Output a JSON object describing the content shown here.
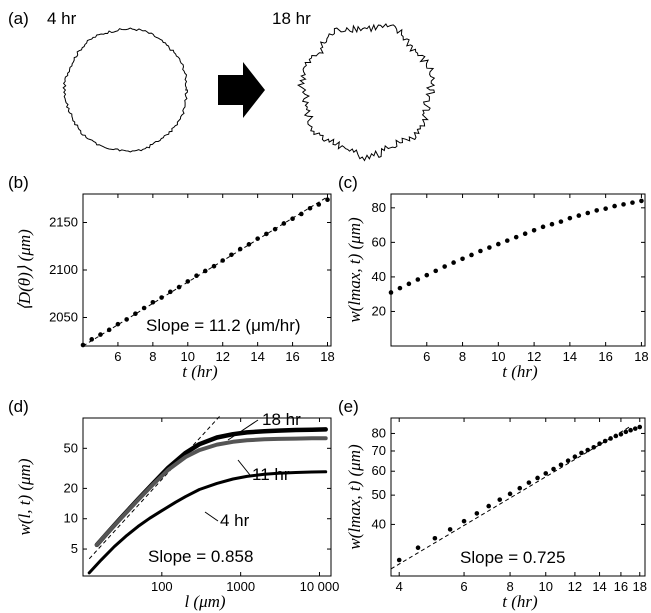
{
  "panel_a": {
    "panel_label": "(a)",
    "left_label": "4 hr",
    "right_label": "18 hr"
  },
  "chart_data": [
    {
      "panel": "(b)",
      "type": "scatter",
      "xlabel": "t (hr)",
      "ylabel": "⟨D(θ)⟩ (μm)",
      "xlim": [
        4,
        18.2
      ],
      "ylim": [
        2020,
        2180
      ],
      "xticks": [
        6,
        8,
        10,
        12,
        14,
        16,
        18
      ],
      "yticks": [
        2050,
        2100,
        2150
      ],
      "annotation": "Slope = 11.2 (μm/hr)",
      "fit_line": {
        "x": [
          4,
          18
        ],
        "y": [
          2020,
          2177
        ]
      },
      "points": {
        "x": [
          4,
          4.5,
          5,
          5.5,
          6,
          6.5,
          7,
          7.5,
          8,
          8.5,
          9,
          9.5,
          10,
          10.5,
          11,
          11.5,
          12,
          12.5,
          13,
          13.5,
          14,
          14.5,
          15,
          15.5,
          16,
          16.5,
          17,
          17.5,
          18
        ],
        "y": [
          2021,
          2027,
          2032,
          2037,
          2043,
          2048,
          2054,
          2060,
          2066,
          2071,
          2077,
          2082,
          2088,
          2094,
          2099,
          2104,
          2110,
          2116,
          2122,
          2127,
          2133,
          2138,
          2143,
          2149,
          2154,
          2159,
          2165,
          2169,
          2174
        ]
      }
    },
    {
      "panel": "(c)",
      "type": "scatter",
      "xlabel": "t (hr)",
      "ylabel": "w(lmax, t) (μm)",
      "xlim": [
        4,
        18.2
      ],
      "ylim": [
        0,
        88
      ],
      "xticks": [
        6,
        8,
        10,
        12,
        14,
        16,
        18
      ],
      "yticks": [
        20,
        40,
        60,
        80
      ],
      "points": {
        "x": [
          4,
          4.5,
          5,
          5.5,
          6,
          6.5,
          7,
          7.5,
          8,
          8.5,
          9,
          9.5,
          10,
          10.5,
          11,
          11.5,
          12,
          12.5,
          13,
          13.5,
          14,
          14.5,
          15,
          15.5,
          16,
          16.5,
          17,
          17.5,
          18
        ],
        "y": [
          31,
          33.5,
          36,
          38.5,
          41,
          43.5,
          46,
          48.3,
          50.5,
          52.7,
          55,
          57,
          59,
          61,
          63,
          65,
          67,
          69,
          70.5,
          72,
          74,
          75.5,
          77,
          78.5,
          79.5,
          81,
          82,
          83,
          84
        ]
      }
    },
    {
      "panel": "(d)",
      "type": "line",
      "xscale": "log",
      "yscale": "log",
      "xlabel": "l (μm)",
      "ylabel": "w(l, t) (μm)",
      "xlim": [
        10,
        14000
      ],
      "ylim": [
        2.7,
        100
      ],
      "xticks": [
        100,
        1000,
        10000
      ],
      "xticklabels": [
        "100",
        "1000",
        "10 000"
      ],
      "yticks": [
        5,
        10,
        20,
        50
      ],
      "annotation": "Slope = 0.858",
      "fit_line": {
        "x": [
          12,
          560
        ],
        "y": [
          4,
          107
        ]
      },
      "series": [
        {
          "name": "18 hr",
          "color": "#000000",
          "x": [
            15,
            20,
            30,
            50,
            80,
            120,
            200,
            300,
            500,
            800,
            1200,
            2000,
            3000,
            5000,
            8000,
            12000
          ],
          "y": [
            5.5,
            7.1,
            10.1,
            15.6,
            23,
            32,
            45,
            55,
            64,
            69,
            72,
            74,
            75,
            76,
            76.5,
            77
          ]
        },
        {
          "name": "11 hr",
          "color": "#555555",
          "x": [
            15,
            20,
            30,
            50,
            80,
            120,
            200,
            300,
            500,
            800,
            1200,
            2000,
            3000,
            5000,
            8000,
            12000
          ],
          "y": [
            5.5,
            7.1,
            10,
            15.4,
            22.5,
            30.5,
            41,
            48,
            54.5,
            58,
            60,
            61.5,
            62,
            62.5,
            63,
            63
          ]
        },
        {
          "name": "4 hr",
          "color": "#000000",
          "x": [
            12,
            17,
            25,
            35,
            50,
            70,
            100,
            150,
            200,
            300,
            500,
            800,
            1200,
            2000,
            3000,
            5000,
            8000,
            12000
          ],
          "y": [
            2.9,
            3.9,
            5.3,
            6.7,
            8.4,
            10.1,
            12,
            14.6,
            16.6,
            19.5,
            22.4,
            24.8,
            26.3,
            27.7,
            28.3,
            28.8,
            29.1,
            29.2
          ]
        }
      ]
    },
    {
      "panel": "(e)",
      "type": "scatter",
      "xscale": "log",
      "yscale": "log",
      "xlabel": "t (hr)",
      "ylabel": "w(lmax, t) (μm)",
      "xlim": [
        3.8,
        18.6
      ],
      "ylim": [
        27,
        90
      ],
      "xticks": [
        4,
        6,
        8,
        10,
        12,
        14,
        16,
        18
      ],
      "yticks": [
        40,
        50,
        60,
        70,
        80
      ],
      "annotation": "Slope = 0.725",
      "fit_line": {
        "x": [
          3.8,
          17
        ],
        "y": [
          28.5,
          84.5
        ]
      },
      "points": {
        "x": [
          4,
          4.5,
          5,
          5.5,
          6,
          6.5,
          7,
          7.5,
          8,
          8.5,
          9,
          9.5,
          10,
          10.5,
          11,
          11.5,
          12,
          12.5,
          13,
          13.5,
          14,
          14.5,
          15,
          15.5,
          16,
          16.5,
          17,
          17.5,
          18
        ],
        "y": [
          30.5,
          33.5,
          36,
          38.5,
          41,
          43.5,
          46,
          48.3,
          50.5,
          52.7,
          55,
          57,
          59,
          61,
          63,
          65,
          67,
          69,
          70.5,
          72,
          74,
          75.5,
          77,
          78.5,
          79.5,
          81,
          82,
          83,
          84
        ]
      }
    }
  ]
}
